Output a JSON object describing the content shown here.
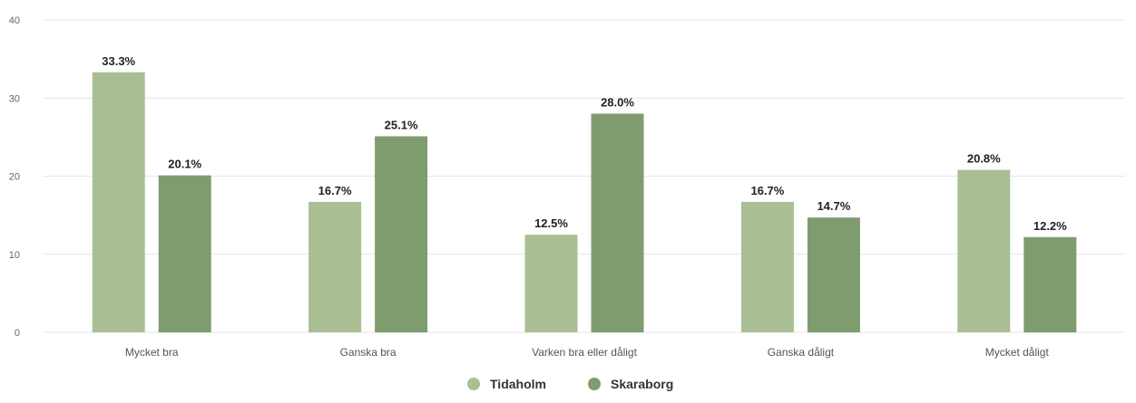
{
  "chart_data": {
    "type": "bar",
    "title": "",
    "xlabel": "",
    "ylabel": "",
    "ylim": [
      0,
      40
    ],
    "yticks": [
      0,
      10,
      20,
      30,
      40
    ],
    "grid": true,
    "legend_position": "bottom-center",
    "categories": [
      "Mycket bra",
      "Ganska bra",
      "Varken bra eller dåligt",
      "Ganska dåligt",
      "Mycket dåligt"
    ],
    "series": [
      {
        "name": "Tidaholm",
        "color": "#a9bf93",
        "values": [
          33.3,
          16.7,
          12.5,
          16.7,
          20.8
        ],
        "labels": [
          "33.3%",
          "16.7%",
          "12.5%",
          "16.7%",
          "20.8%"
        ]
      },
      {
        "name": "Skaraborg",
        "color": "#7f9c6f",
        "values": [
          20.1,
          25.1,
          28.0,
          14.7,
          12.2
        ],
        "labels": [
          "20.1%",
          "25.1%",
          "28.0%",
          "14.7%",
          "12.2%"
        ]
      }
    ]
  }
}
